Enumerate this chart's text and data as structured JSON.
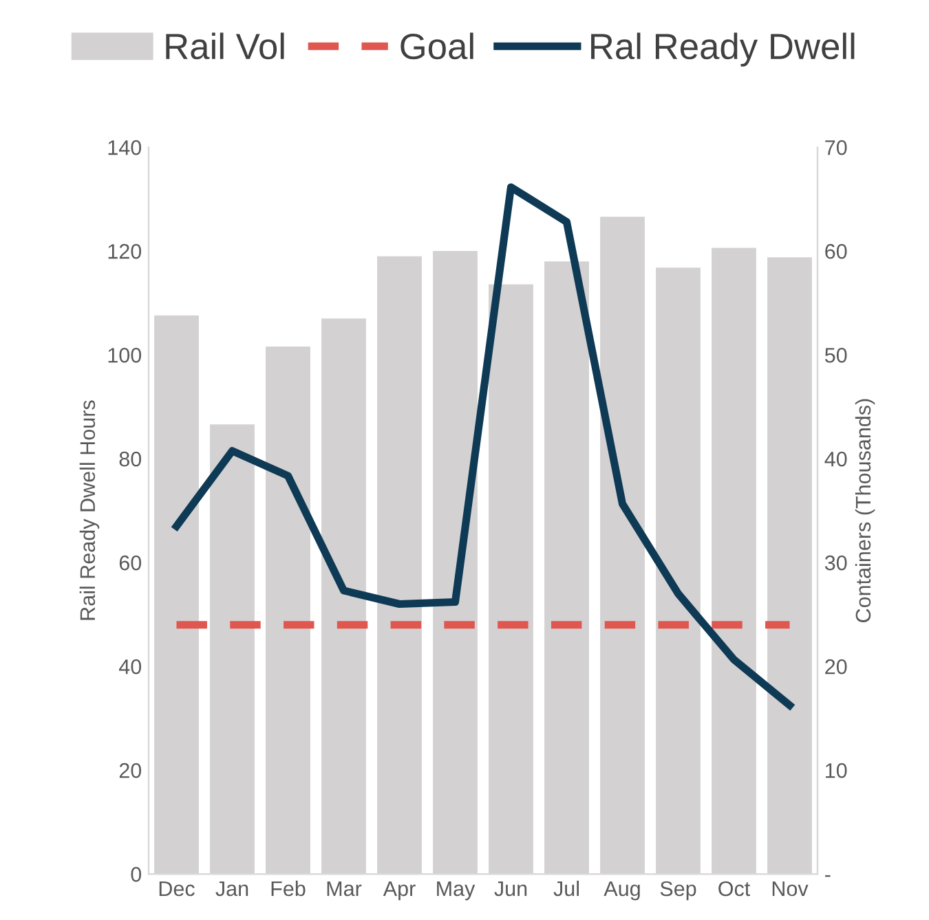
{
  "chart_data": {
    "type": "bar",
    "ylabel": "Rail Ready Dwell Hours",
    "y2label": "Containers (Thousands)",
    "categories": [
      "Dec",
      "Jan",
      "Feb",
      "Mar",
      "Apr",
      "May",
      "Jun",
      "Jul",
      "Aug",
      "Sep",
      "Oct",
      "Nov"
    ],
    "series": [
      {
        "name": "Rail Vol",
        "axis": "y2",
        "color": "#d3d1d2",
        "values": [
          53.8,
          43.3,
          50.8,
          53.5,
          59.5,
          60,
          56.8,
          59,
          63.3,
          58.4,
          60.3,
          59.4
        ]
      },
      {
        "name": "Goal",
        "type": "line",
        "line_style": "dashed",
        "color": "#e0574f",
        "values": [
          48,
          48,
          48,
          48,
          48,
          48,
          48,
          48,
          48,
          48,
          48,
          48
        ]
      },
      {
        "name": "Ral Ready Dwell",
        "type": "line",
        "line_style": "solid",
        "color": "#0e3a55",
        "values": [
          67,
          81.5,
          76.7,
          54.6,
          52,
          52.4,
          132.3,
          125.6,
          71.3,
          54,
          41.3,
          32.5
        ]
      }
    ],
    "ylim": [
      0,
      140
    ],
    "yticks": [
      0,
      20,
      40,
      60,
      80,
      100,
      120,
      140
    ],
    "y2lim": [
      0,
      70
    ],
    "y2ticks": [
      {
        "value": 0,
        "label": "-"
      },
      10,
      20,
      30,
      40,
      50,
      60,
      70
    ],
    "grid": false,
    "legend": "top",
    "marker": "none"
  }
}
